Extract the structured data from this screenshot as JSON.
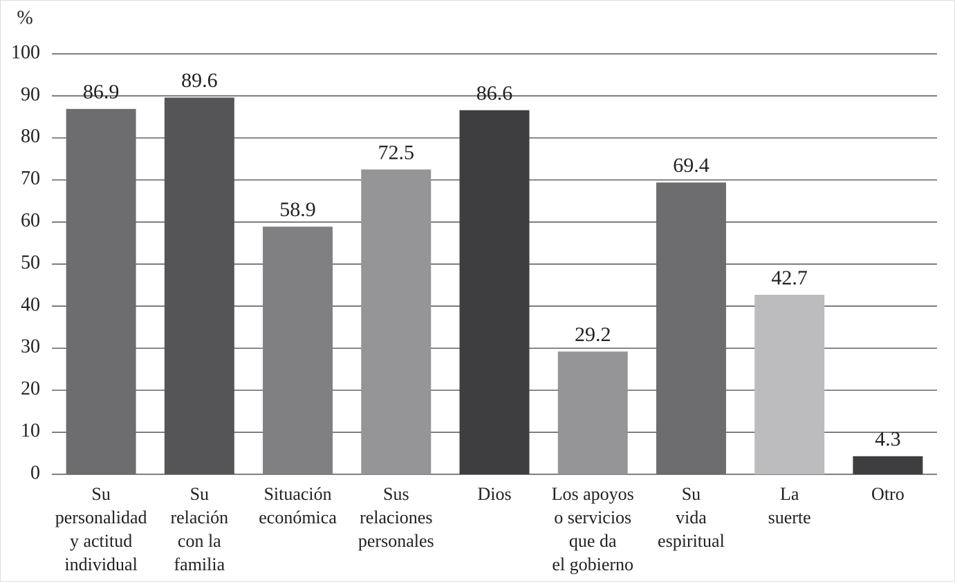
{
  "chart_data": {
    "type": "bar",
    "y_label": "%",
    "categories": [
      [
        "Su",
        "personalidad",
        "y actitud",
        "individual"
      ],
      [
        "Su",
        "relación",
        "con la",
        "familia"
      ],
      [
        "Situación",
        "económica"
      ],
      [
        "Sus",
        "relaciones",
        "personales"
      ],
      [
        "Dios"
      ],
      [
        "Los apoyos",
        "o servicios",
        "que da",
        "el gobierno"
      ],
      [
        "Su",
        "vida",
        "espiritual"
      ],
      [
        "La",
        "suerte"
      ],
      [
        "Otro"
      ]
    ],
    "values": [
      86.9,
      89.6,
      58.9,
      72.5,
      86.6,
      29.2,
      69.4,
      42.7,
      4.3
    ],
    "colors": [
      "#6d6d6f",
      "#555557",
      "#808083",
      "#959598",
      "#3e3e40",
      "#959598",
      "#6d6d6f",
      "#bcbcbe",
      "#3e3e40"
    ],
    "ylim": [
      0,
      100
    ],
    "yticks": [
      0,
      10,
      20,
      30,
      40,
      50,
      60,
      70,
      80,
      90,
      100
    ],
    "grid": true
  }
}
